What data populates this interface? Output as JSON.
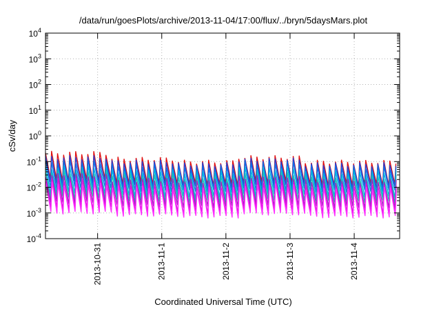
{
  "chart_data": {
    "type": "line",
    "title": "/data/run/goesPlots/archive/2013-11-04/17:00/flux/../bryn/5daysMars.plot",
    "xlabel": "Coordinated Universal Time (UTC)",
    "ylabel": "cSv/day",
    "x_axis": {
      "kind": "date",
      "range": [
        "2013-10-30T04:30:00Z",
        "2013-11-04T17:00:00Z"
      ],
      "ticks": [
        {
          "value": "2013-10-31T00:00:00Z",
          "label": "2013-10-31"
        },
        {
          "value": "2013-11-01T00:00:00Z",
          "label": "2013-11-1"
        },
        {
          "value": "2013-11-02T00:00:00Z",
          "label": "2013-11-2"
        },
        {
          "value": "2013-11-03T00:00:00Z",
          "label": "2013-11-3"
        },
        {
          "value": "2013-11-04T00:00:00Z",
          "label": "2013-11-4"
        }
      ]
    },
    "y_axis": {
      "scale": "log",
      "range": [
        0.0001,
        10000
      ],
      "ticks": [
        {
          "value": 0.0001,
          "base": "10",
          "exp": "-4"
        },
        {
          "value": 0.001,
          "base": "10",
          "exp": "-3"
        },
        {
          "value": 0.01,
          "base": "10",
          "exp": "-2"
        },
        {
          "value": 0.1,
          "base": "10",
          "exp": "-1"
        },
        {
          "value": 1,
          "base": "10",
          "exp": "0"
        },
        {
          "value": 10,
          "base": "10",
          "exp": "1"
        },
        {
          "value": 100,
          "base": "10",
          "exp": "2"
        },
        {
          "value": 1000,
          "base": "10",
          "exp": "3"
        },
        {
          "value": 10000,
          "base": "10",
          "exp": "4"
        }
      ]
    },
    "grid": true,
    "legend": "none",
    "orbit_period_hours": 2.26,
    "series": [
      {
        "color": "#e01010",
        "peaks": [
          0.22,
          0.13,
          0.1,
          0.15,
          0.1
        ],
        "troughs": [
          0.02,
          0.015,
          0.013,
          0.016,
          0.013
        ]
      },
      {
        "color": "#2a3fd0",
        "peaks": [
          0.15,
          0.1,
          0.08,
          0.12,
          0.08
        ],
        "troughs": [
          0.015,
          0.011,
          0.01,
          0.012,
          0.01
        ]
      },
      {
        "color": "#0c6fe8",
        "peaks": [
          0.1,
          0.07,
          0.06,
          0.09,
          0.06
        ],
        "troughs": [
          0.01,
          0.0075,
          0.007,
          0.008,
          0.007
        ]
      },
      {
        "color": "#00b4e0",
        "peaks": [
          0.06,
          0.045,
          0.04,
          0.055,
          0.04
        ],
        "troughs": [
          0.006,
          0.0045,
          0.004,
          0.005,
          0.004
        ]
      },
      {
        "color": "#20c0b0",
        "peaks": [
          0.04,
          0.03,
          0.025,
          0.035,
          0.025
        ],
        "troughs": [
          0.004,
          0.003,
          0.0028,
          0.0032,
          0.0028
        ]
      },
      {
        "color": "#a020c0",
        "peaks": [
          0.03,
          0.02,
          0.018,
          0.025,
          0.018
        ],
        "troughs": [
          0.0025,
          0.0019,
          0.0017,
          0.002,
          0.0017
        ]
      },
      {
        "color": "#e010e0",
        "peaks": [
          0.02,
          0.014,
          0.012,
          0.017,
          0.012
        ],
        "troughs": [
          0.0015,
          0.0011,
          0.001,
          0.0013,
          0.001
        ]
      },
      {
        "color": "#ff30ff",
        "peaks": [
          0.014,
          0.01,
          0.009,
          0.012,
          0.009
        ],
        "troughs": [
          0.001,
          0.0008,
          0.0007,
          0.0009,
          0.0007
        ]
      }
    ]
  }
}
